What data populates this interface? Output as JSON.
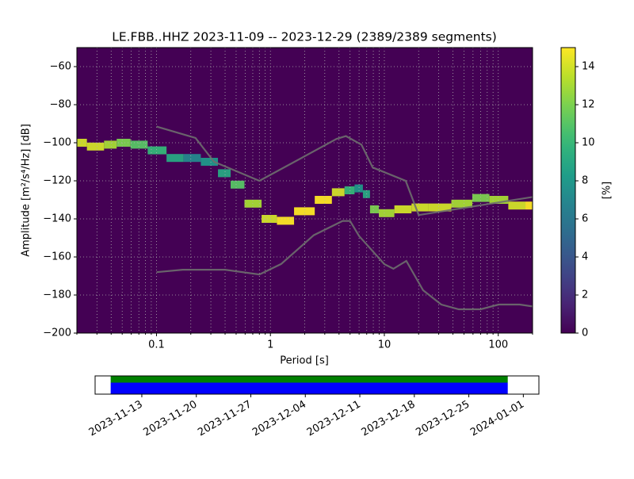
{
  "chart_data": [
    {
      "type": "ppsd",
      "title": "LE.FBB..HHZ   2023-11-09 -- 2023-12-29  (2389/2389 segments)",
      "xlabel": "Period [s]",
      "ylabel": "Amplitude [m²/s⁴/Hz] [dB]",
      "xscale": "log",
      "xlim": [
        0.02,
        200
      ],
      "ylim": [
        -200,
        -50
      ],
      "xticks": [
        0.1,
        1,
        10,
        100
      ],
      "xminorticks": [
        0.02,
        0.03,
        0.04,
        0.05,
        0.06,
        0.07,
        0.08,
        0.09,
        0.2,
        0.3,
        0.4,
        0.5,
        0.6,
        0.7,
        0.8,
        0.9,
        2,
        3,
        4,
        5,
        6,
        7,
        8,
        9,
        20,
        30,
        40,
        50,
        60,
        70,
        80,
        90,
        200
      ],
      "yticks": [
        {
          "value": -200,
          "label": "−200"
        },
        {
          "value": -180,
          "label": "−180"
        },
        {
          "value": -160,
          "label": "−160"
        },
        {
          "value": -140,
          "label": "−140"
        },
        {
          "value": -120,
          "label": "−120"
        },
        {
          "value": -100,
          "label": "−100"
        },
        {
          "value": -80,
          "label": "−80"
        },
        {
          "value": -60,
          "label": "−60"
        }
      ],
      "grid": true,
      "cmap": "viridis",
      "histogram": {
        "x": [
          0.02,
          0.03,
          0.04,
          0.05,
          0.07,
          0.1,
          0.15,
          0.2,
          0.3,
          0.4,
          0.5,
          0.7,
          1,
          1.3,
          2,
          3,
          4,
          5,
          6,
          7,
          8,
          10,
          15,
          20,
          30,
          50,
          70,
          100,
          150,
          200
        ],
        "values": [
          -100,
          -102,
          -101,
          -100,
          -101,
          -104,
          -108,
          -108,
          -110,
          -116,
          -122,
          -132,
          -140,
          -141,
          -136,
          -130,
          -126,
          -125,
          -124,
          -127,
          -135,
          -137,
          -135,
          -134,
          -134,
          -132,
          -129,
          -130,
          -133,
          -133
        ],
        "percent": [
          14,
          14,
          13,
          12,
          11,
          10,
          9,
          7,
          8,
          9,
          11,
          13,
          14,
          15,
          15,
          15,
          14,
          10,
          8,
          9,
          12,
          13,
          14,
          14,
          14,
          13,
          12,
          13,
          14,
          15
        ]
      },
      "series": [
        {
          "color": "#6e6e6e",
          "x": [
            0.1,
            0.22,
            0.32,
            0.8,
            3.8,
            4.6,
            6.3,
            7.9,
            15.4,
            20,
            200
          ],
          "values": [
            -91.5,
            -97.5,
            -110,
            -120,
            -98,
            -96.5,
            -101,
            -113,
            -120,
            -138,
            -128.5
          ]
        },
        {
          "color": "#6e6e6e",
          "x": [
            0.1,
            0.17,
            0.4,
            0.8,
            1.24,
            2.4,
            4.3,
            5,
            6,
            10,
            12,
            15.6,
            21.9,
            31.6,
            45,
            70,
            101,
            154,
            200
          ],
          "values": [
            -168,
            -166.7,
            -166.7,
            -169.2,
            -163.7,
            -148.6,
            -141.1,
            -141.1,
            -149,
            -163.8,
            -166.2,
            -162.1,
            -177.5,
            -185,
            -187.5,
            -187.5,
            -185,
            -185,
            -186
          ]
        }
      ],
      "colorbar": {
        "label": "[%]",
        "lim": [
          0,
          15
        ],
        "ticks": [
          0,
          2,
          4,
          6,
          8,
          10,
          12,
          14
        ]
      }
    },
    {
      "type": "timeline",
      "xlim": [
        "2023-11-07",
        "2024-01-03"
      ],
      "xticks": [
        "2023-11-13",
        "2023-11-20",
        "2023-11-27",
        "2023-12-04",
        "2023-12-11",
        "2023-12-18",
        "2023-12-25",
        "2024-01-01"
      ],
      "spans": [
        {
          "color": "#008000",
          "start": "2023-11-09",
          "end": "2023-12-30"
        },
        {
          "color": "#0000ff",
          "start": "2023-11-09",
          "end": "2023-12-30"
        }
      ]
    }
  ]
}
